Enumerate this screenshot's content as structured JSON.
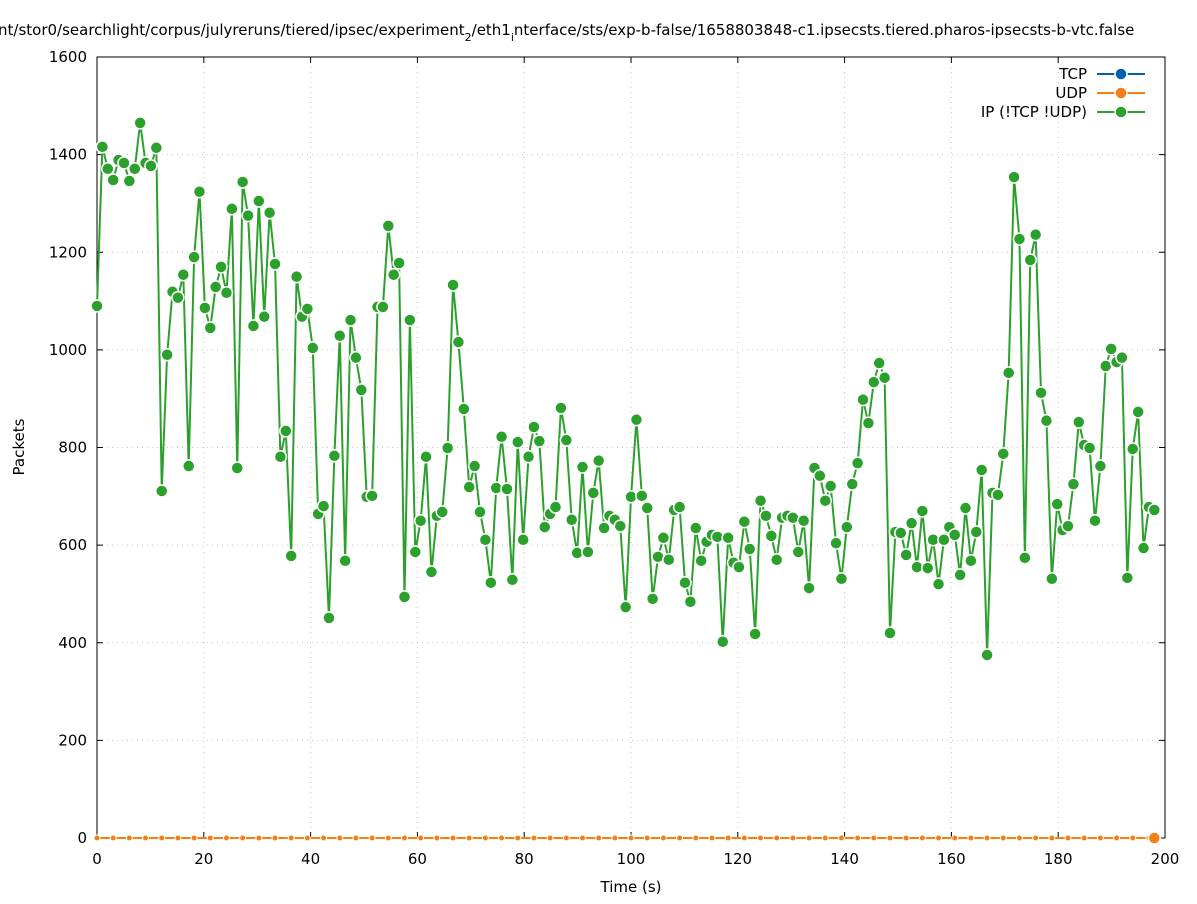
{
  "chart_data": {
    "type": "line",
    "title": "nt/stor0/searchlight/corpus/julyreruns/tiered/ipsec/experiment_2/eth1_interface/sts/exp-b-false/1658803848-c1.ipsecsts.tiered.pharos-ipsecsts-b-vtc.false",
    "title_parts": {
      "a": "nt/stor0/searchlight/corpus/julyreruns/tiered/ipsec/experiment",
      "sub1": "2",
      "b": "/eth1",
      "sub2": "i",
      "c": "nterface/sts/exp-b-false/1658803848-c1.ipsecsts.tiered.pharos-ipsecsts-b-vtc.false"
    },
    "xlabel": "Time (s)",
    "ylabel": "Packets",
    "xlim": [
      0,
      200
    ],
    "ylim": [
      0,
      1600
    ],
    "xticks": [
      "0",
      "20",
      "40",
      "60",
      "80",
      "100",
      "120",
      "140",
      "160",
      "180",
      "200"
    ],
    "yticks": [
      "0",
      "200",
      "400",
      "600",
      "800",
      "1000",
      "1200",
      "1400",
      "1600"
    ],
    "grid": true,
    "legend_position": "top-right",
    "series": [
      {
        "name": "TCP",
        "color": "#0060ad",
        "values_constant": 0
      },
      {
        "name": "UDP",
        "color": "#f57f17",
        "values_constant": 0
      },
      {
        "name": "IP (!TCP  !UDP)",
        "color": "#2ca02c",
        "values": [
          1090,
          1416,
          1371,
          1348,
          1389,
          1383,
          1346,
          1371,
          1465,
          1383,
          1377,
          1414,
          711,
          990,
          1119,
          1107,
          1154,
          762,
          1190,
          1324,
          1086,
          1045,
          1129,
          1170,
          1117,
          1289,
          758,
          1344,
          1275,
          1049,
          1305,
          1068,
          1281,
          1176,
          781,
          834,
          578,
          1150,
          1068,
          1084,
          1004,
          664,
          680,
          451,
          783,
          1029,
          568,
          1061,
          984,
          918,
          699,
          701,
          1088,
          1088,
          1254,
          1154,
          1178,
          494,
          1061,
          586,
          650,
          781,
          545,
          660,
          668,
          799,
          1133,
          1016,
          879,
          719,
          762,
          668,
          611,
          523,
          717,
          822,
          715,
          529,
          811,
          611,
          781,
          842,
          813,
          637,
          664,
          678,
          881,
          815,
          652,
          584,
          760,
          586,
          707,
          773,
          635,
          660,
          652,
          639,
          473,
          699,
          857,
          701,
          676,
          490,
          576,
          615,
          570,
          672,
          678,
          523,
          484,
          635,
          568,
          607,
          621,
          617,
          402,
          615,
          564,
          555,
          648,
          592,
          418,
          691,
          660,
          619,
          570,
          656,
          660,
          656,
          586,
          650,
          512,
          758,
          742,
          691,
          721,
          604,
          531,
          637,
          725,
          768,
          898,
          850,
          934,
          973,
          943,
          420,
          627,
          625,
          580,
          645,
          555,
          670,
          553,
          611,
          520,
          611,
          637,
          621,
          539,
          676,
          568,
          627,
          754,
          375,
          707,
          703,
          787,
          953,
          1354,
          1227,
          574,
          1184,
          1236,
          912,
          855,
          531,
          684,
          631,
          639,
          725,
          852,
          805,
          799,
          650,
          762,
          967,
          1002,
          975,
          984,
          533,
          797,
          873,
          594,
          678,
          672
        ]
      }
    ]
  }
}
